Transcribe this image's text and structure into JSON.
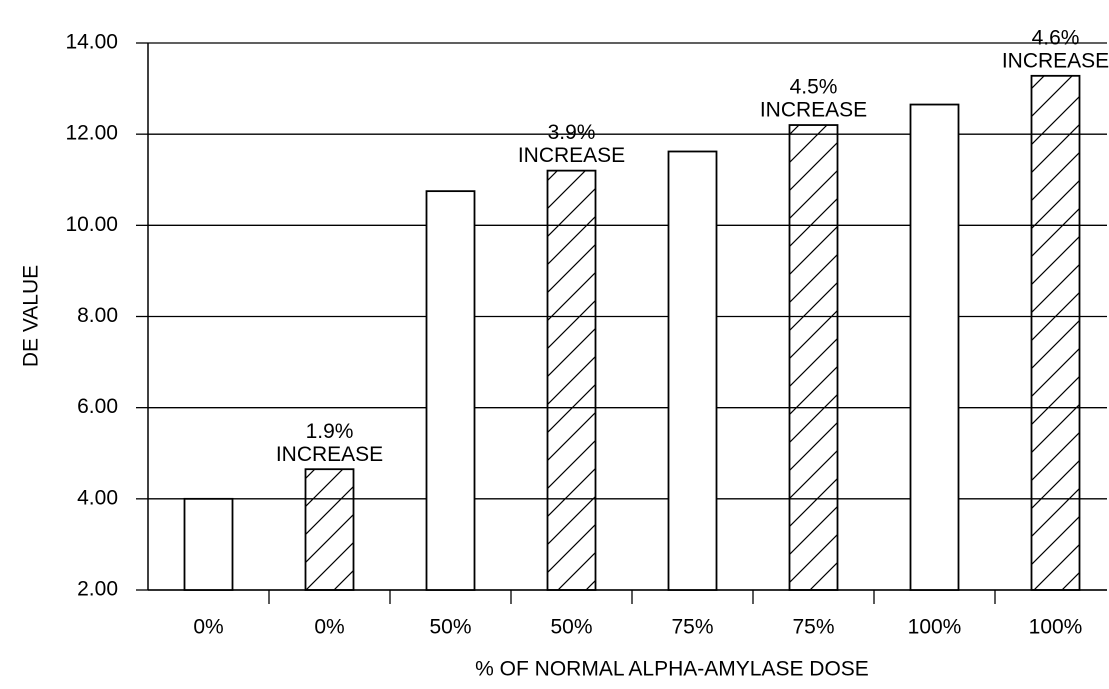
{
  "chart_data": {
    "type": "bar",
    "xlabel": "% OF NORMAL ALPHA-AMYLASE DOSE",
    "ylabel": "DE VALUE",
    "categories": [
      "0%",
      "0%",
      "50%",
      "50%",
      "75%",
      "75%",
      "100%",
      "100%"
    ],
    "values": [
      4.0,
      4.65,
      10.75,
      11.2,
      11.62,
      12.2,
      12.65,
      13.28
    ],
    "hatched": [
      false,
      true,
      false,
      true,
      false,
      true,
      false,
      true
    ],
    "annotations": [
      null,
      [
        "1.9%",
        "INCREASE"
      ],
      null,
      [
        "3.9%",
        "INCREASE"
      ],
      null,
      [
        "4.5%",
        "INCREASE"
      ],
      null,
      [
        "4.6%",
        "INCREASE"
      ]
    ],
    "color": "#ffffff",
    "ylim": [
      2,
      14
    ],
    "yticks": [
      {
        "value": 2,
        "label": "2.00"
      },
      {
        "value": 4,
        "label": "4.00"
      },
      {
        "value": 6,
        "label": "6.00"
      },
      {
        "value": 8,
        "label": "8.00"
      },
      {
        "value": 10,
        "label": "10.00"
      },
      {
        "value": 12,
        "label": "12.00"
      },
      {
        "value": 14,
        "label": "14.00"
      }
    ],
    "grid": true
  }
}
